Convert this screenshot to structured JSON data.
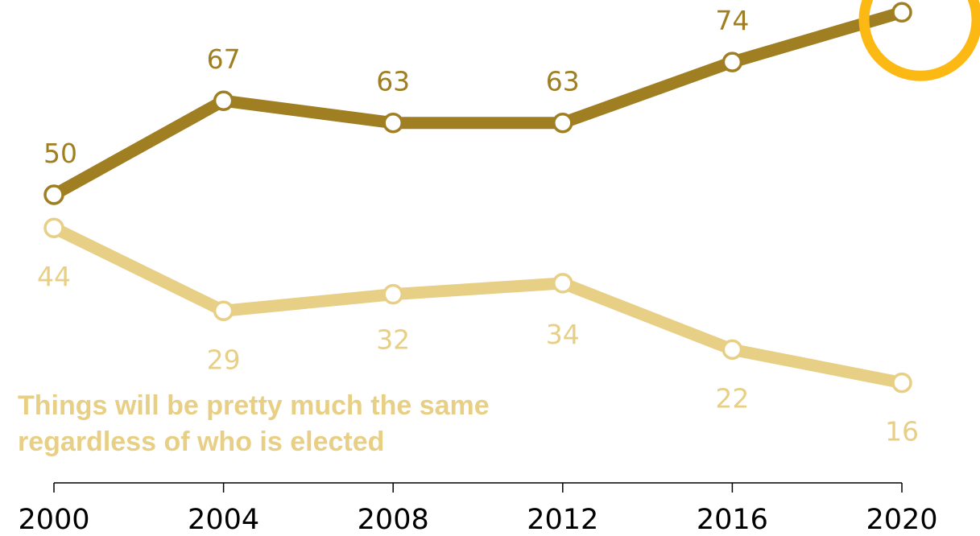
{
  "chart_data": {
    "type": "line",
    "x": [
      "2000",
      "2004",
      "2008",
      "2012",
      "2016",
      "2020"
    ],
    "series": [
      {
        "values": [
          50,
          67,
          63,
          63,
          74,
          83
        ],
        "labels": [
          "50",
          "67",
          "63",
          "63",
          "74",
          ""
        ],
        "color": "#a07e22"
      },
      {
        "name": "Things will be pretty much the same regardless of who is elected",
        "name_lines": [
          "Things will be pretty much the same",
          "regardless of who is elected"
        ],
        "values": [
          44,
          29,
          32,
          34,
          22,
          16
        ],
        "labels": [
          "44",
          "29",
          "32",
          "34",
          "22",
          "16"
        ],
        "color": "#e8cf86"
      }
    ],
    "grid": false,
    "highlight": {
      "x": "2020",
      "series": 0,
      "color": "#fdb913"
    }
  }
}
